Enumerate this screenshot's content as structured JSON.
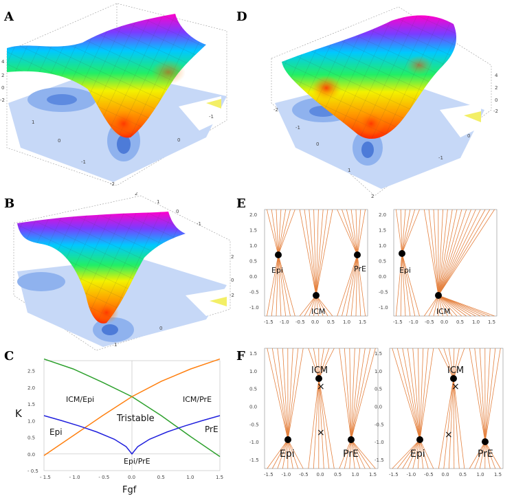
{
  "panels": {
    "a": "A",
    "b": "B",
    "c": "C",
    "d": "D",
    "e": "E",
    "f": "F"
  },
  "surface_ticks": {
    "a_z": [
      "4",
      "2",
      "0",
      "-2"
    ],
    "a_x": [
      "1",
      "0",
      "-1",
      "-2"
    ],
    "a_y": [
      "0",
      "-1"
    ],
    "b_top": [
      "2",
      "1",
      "0",
      "-1"
    ],
    "b_right": [
      "2",
      "0",
      "-2"
    ],
    "b_bottom": [
      "0",
      "1"
    ],
    "d_left": [
      "-2",
      "-1",
      "0",
      "1",
      "2"
    ],
    "d_right": [
      "4",
      "2",
      "0",
      "-2"
    ],
    "d_bottom": [
      "0",
      "-1"
    ]
  },
  "chart_data": {
    "type": "line",
    "xlabel": "Fgf",
    "ylabel": "K",
    "xlim": [
      -1.5,
      1.5
    ],
    "ylim": [
      -0.5,
      2.8
    ],
    "x_ticks": [
      "- 1.5",
      "- 1.0",
      "- 0.5",
      "0.0",
      "0.5",
      "1.0",
      "1.5"
    ],
    "y_ticks": [
      "- 0.5",
      "0.0",
      "0.5",
      "1.0",
      "1.5",
      "2.0",
      "2.5"
    ],
    "series": [
      {
        "name": "green",
        "color": "#2ca02c",
        "x": [
          -1.5,
          -1.0,
          -0.5,
          0.0,
          0.5,
          1.0,
          1.5
        ],
        "y": [
          2.85,
          2.55,
          2.15,
          1.72,
          1.15,
          0.52,
          -0.08
        ]
      },
      {
        "name": "orange",
        "color": "#ff7f0e",
        "x": [
          -1.5,
          -1.0,
          -0.5,
          0.0,
          0.5,
          1.0,
          1.5
        ],
        "y": [
          -0.05,
          0.55,
          1.15,
          1.72,
          2.18,
          2.55,
          2.85
        ]
      },
      {
        "name": "blue",
        "color": "#1f1fdd",
        "x": [
          -1.5,
          -1.2,
          -0.9,
          -0.6,
          -0.3,
          -0.1,
          0.0,
          0.1,
          0.3,
          0.6,
          0.9,
          1.2,
          1.5
        ],
        "y": [
          1.15,
          1.0,
          0.84,
          0.66,
          0.44,
          0.22,
          0.0,
          0.22,
          0.44,
          0.66,
          0.84,
          1.0,
          1.15
        ]
      }
    ],
    "annotations": [
      "ICM/Epi",
      "ICM/PrE",
      "Tristable",
      "Epi",
      "PrE",
      "Epi/PrE"
    ]
  },
  "phase": {
    "x_ticks": [
      "-1.5",
      "-1.0",
      "-0.5",
      "0.0",
      "0.5",
      "1.0",
      "1.5"
    ],
    "e_y_ticks": [
      "2.0",
      "1.5",
      "1.0",
      "0.5",
      "0.0",
      "-0.5",
      "-1.0"
    ],
    "f_y_ticks": [
      "1.5",
      "1.0",
      "0.5",
      "0.0",
      "-0.5",
      "-1.0",
      "-1.5"
    ],
    "e1": {
      "epi": "Epi",
      "pre": "PrE",
      "icm": "ICM"
    },
    "e2": {
      "epi": "Epi",
      "icm": "ICM"
    },
    "f1": {
      "icm": "ICM",
      "epi": "Epi",
      "pre": "PrE"
    },
    "f2": {
      "icm": "ICM",
      "epi": "Epi",
      "pre": "PrE"
    }
  }
}
